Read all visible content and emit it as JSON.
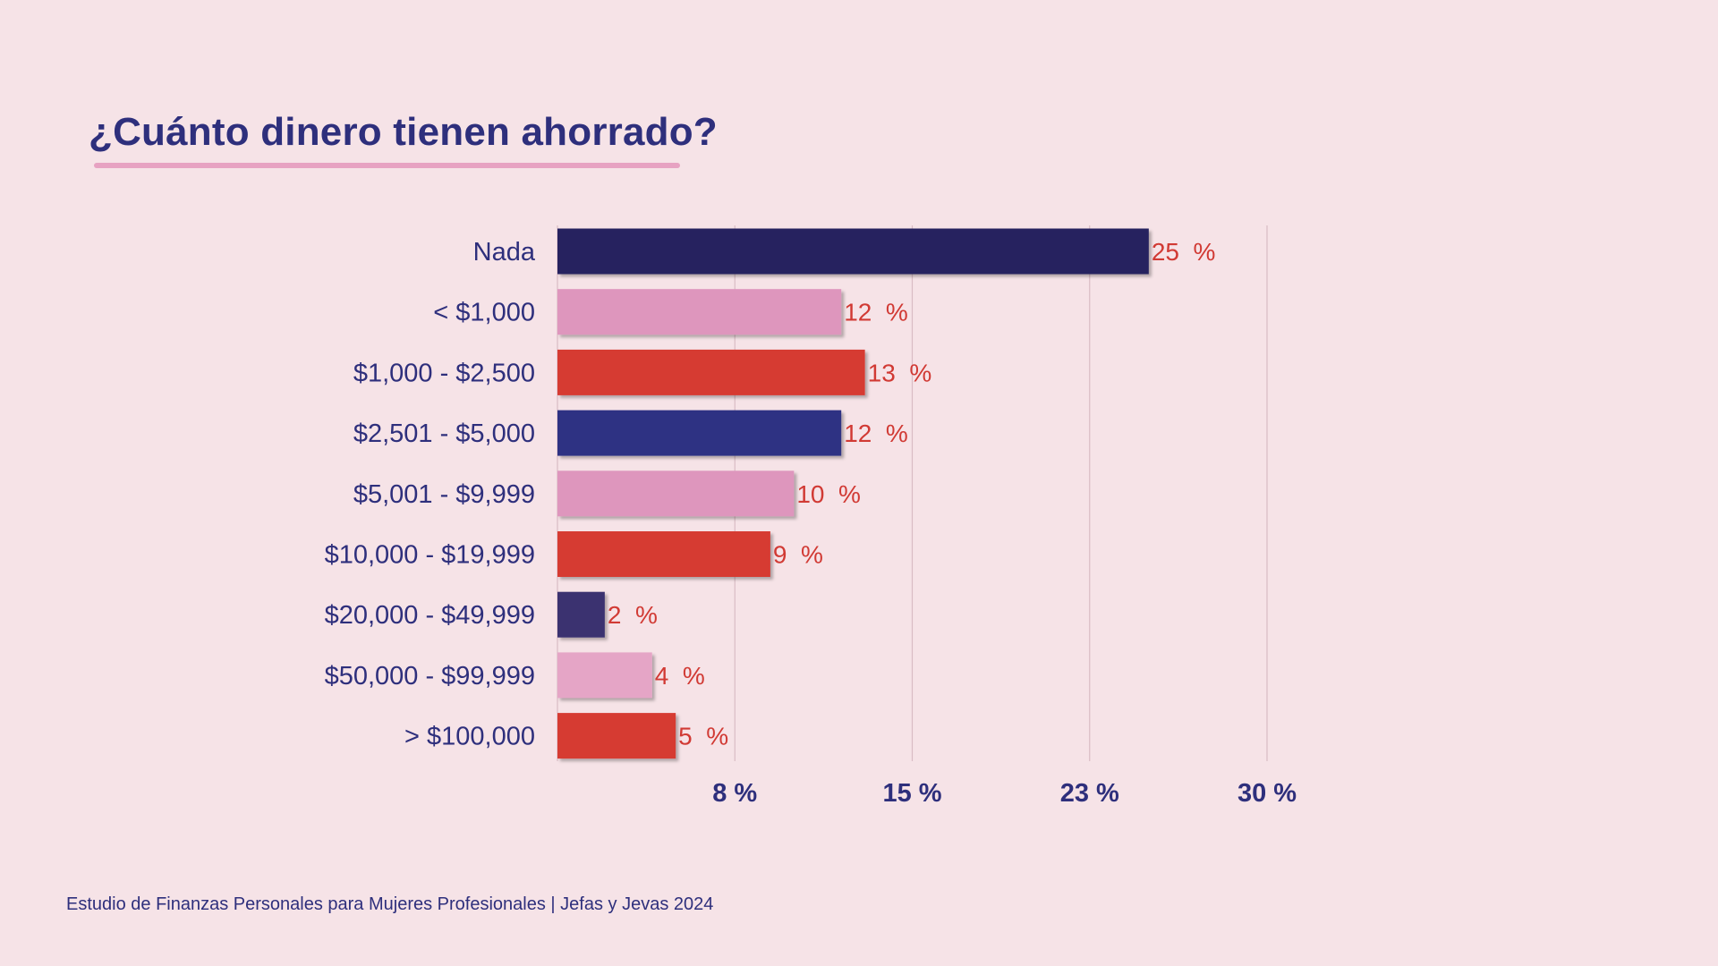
{
  "page": {
    "title": "¿Cuánto dinero tienen ahorrado?",
    "footer": "Estudio de Finanzas Personales para Mujeres Profesionales | Jefas y Jevas 2024"
  },
  "colors": {
    "background": "#f6e3e7",
    "title": "#2e2f7c",
    "underline": "#e7a2c2",
    "value_label": "#d13a34",
    "gridline": "#d9bcc4"
  },
  "chart_data": {
    "type": "bar",
    "orientation": "horizontal",
    "title": "¿Cuánto dinero tienen ahorrado?",
    "xlabel": "",
    "ylabel": "",
    "xlim": [
      0,
      30
    ],
    "grid": true,
    "legend": "none",
    "categories": [
      "Nada",
      "< $1,000",
      "$1,000 - $2,500",
      "$2,501 - $5,000",
      "$5,001 - $9,999",
      "$10,000 - $19,999",
      "$20,000 - $49,999",
      "$50,000 - $99,999",
      "> $100,000"
    ],
    "values": [
      25,
      12,
      13,
      12,
      10,
      9,
      2,
      4,
      5
    ],
    "value_labels": [
      "25  %",
      "12  %",
      "13  %",
      "12  %",
      "10  %",
      "9  %",
      "2  %",
      "4  %",
      "5  %"
    ],
    "bar_colors": [
      "#26245e",
      "#de96bd",
      "#d63a33",
      "#2f3283",
      "#de96bd",
      "#d63a33",
      "#3b3270",
      "#e5a5c6",
      "#d63a33"
    ],
    "ticks": [
      7.5,
      15,
      22.5,
      30
    ],
    "tick_labels": [
      "8 %",
      "15 %",
      "23 %",
      "30 %"
    ]
  }
}
